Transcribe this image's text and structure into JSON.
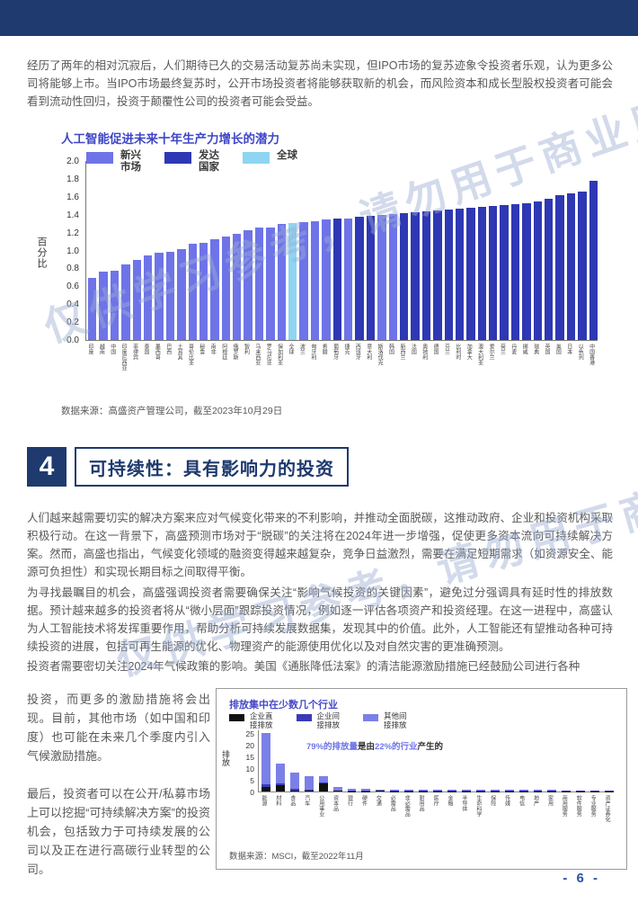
{
  "page": {
    "number": "- 6 -",
    "watermark": "仅供学习参考，请勿用于商业用途"
  },
  "intro_paragraph": "经历了两年的相对沉寂后，人们期待已久的交易活动复苏尚未实现，但IPO市场的复苏迹象令投资者乐观，认为更多公司将能够上市。当IPO市场最终复苏时，公开市场投资者将能够获取新的机会，而风险资本和成长型股权投资者可能会看到流动性回归，投资于颠覆性公司的投资者可能会受益。",
  "section": {
    "number": "4",
    "title": "可持续性：具有影响力的投资"
  },
  "paragraphs": [
    "人们越来越需要切实的解决方案来应对气候变化带来的不利影响，并推动全面脱碳，这推动政府、企业和投资机构采取积极行动。在这一背景下，高盛预测市场对于“脱碳”的关注将在2024年进一步增强，促使更多资本流向可持续解决方案。然而，高盛也指出，气候变化领域的融资变得越来越复杂，竞争日益激烈，需要在满足短期需求（如资源安全、能源可负担性）和实现长期目标之间取得平衡。",
    "为寻找最瞩目的机会，高盛强调投资者需要确保关注“影响气候投资的关键因素”，避免过分强调具有延时性的排放数据。预计越来越多的投资者将从“微小层面”跟踪投资情况，例如逐一评估各项资产和投资经理。在这一进程中，高盛认为人工智能技术将发挥重要作用，帮助分析可持续发展数据集，发现其中的价值。此外，人工智能还有望推动各种可持续投资的进展，包括可再生能源的优化、物理资产的能源使用优化以及对自然灾害的更准确预测。",
    "投资者需要密切关注2024年气候政策的影响。美国《通胀降低法案》的清洁能源激励措施已经鼓励公司进行各种"
  ],
  "left_column": [
    "投资，而更多的激励措施将会出现。目前，其他市场（如中国和印度）也可能在未来几个季度内引入气候激励措施。",
    "最后，投资者可以在公开/私募市场上可以挖掘“可持续解决方案”的投资机会，包括致力于可持续发展的公司以及正在进行高碳行业转型的公司。"
  ],
  "chart1": {
    "title": "人工智能促进未来十年生产力增长的潜力",
    "ylabel": "百分比",
    "legend": [
      {
        "label": "新兴\n市场",
        "key": "em",
        "color": "#6e74e8"
      },
      {
        "label": "发达\n国家",
        "key": "dm",
        "color": "#2e38b4"
      },
      {
        "label": "全球",
        "key": "global",
        "color": "#8ed5f2"
      }
    ],
    "source": "数据来源：高盛资产管理公司，截至2023年10月29日"
  },
  "chart2": {
    "title": "排放集中在少数几个行业",
    "ylabel": "排放",
    "legend": [
      {
        "label": "企业直\n接排放",
        "key": "direct",
        "color": "#111111"
      },
      {
        "label": "企业间\n接排放",
        "key": "indirect",
        "color": "#3a3ab8"
      },
      {
        "label": "其他间\n接排放",
        "key": "other",
        "color": "#7b80e8"
      }
    ],
    "annotation": [
      {
        "text": "79%的排放量",
        "color": "#6e74e8"
      },
      {
        "text": "是由",
        "color": "#333333"
      },
      {
        "text": "22%的行业",
        "color": "#6e74e8"
      },
      {
        "text": "产生的",
        "color": "#333333"
      }
    ],
    "source": "数据来源：MSCI，截至2022年11月"
  },
  "chart_data": [
    {
      "type": "bar",
      "title": "人工智能促进未来十年生产力增长的潜力",
      "xlabel": "",
      "ylabel": "百分比",
      "ylim": [
        0.0,
        2.0
      ],
      "ytick_step": 0.2,
      "grid": false,
      "legend_position": "top",
      "groups": {
        "em": "新兴市场",
        "dm": "发达国家",
        "global": "全球"
      },
      "points": [
        {
          "label": "印度",
          "value": 0.69,
          "group": "em"
        },
        {
          "label": "越南",
          "value": 0.76,
          "group": "em"
        },
        {
          "label": "中国",
          "value": 0.77,
          "group": "em"
        },
        {
          "label": "印度尼西亚",
          "value": 0.84,
          "group": "em"
        },
        {
          "label": "菲律宾",
          "value": 0.89,
          "group": "em"
        },
        {
          "label": "泰国",
          "value": 0.94,
          "group": "em"
        },
        {
          "label": "墨西哥",
          "value": 0.98,
          "group": "em"
        },
        {
          "label": "巴西",
          "value": 0.99,
          "group": "em"
        },
        {
          "label": "土耳其",
          "value": 1.02,
          "group": "em"
        },
        {
          "label": "哥伦比亚",
          "value": 1.08,
          "group": "em"
        },
        {
          "label": "秘鲁",
          "value": 1.09,
          "group": "em"
        },
        {
          "label": "南非",
          "value": 1.13,
          "group": "em"
        },
        {
          "label": "阿根廷",
          "value": 1.16,
          "group": "em"
        },
        {
          "label": "俄罗斯",
          "value": 1.19,
          "group": "em"
        },
        {
          "label": "智利",
          "value": 1.23,
          "group": "em"
        },
        {
          "label": "马来西亚",
          "value": 1.26,
          "group": "em"
        },
        {
          "label": "罗马尼亚",
          "value": 1.26,
          "group": "em"
        },
        {
          "label": "保加利亚",
          "value": 1.3,
          "group": "em"
        },
        {
          "label": "全球",
          "value": 1.31,
          "group": "global"
        },
        {
          "label": "波兰",
          "value": 1.32,
          "group": "em"
        },
        {
          "label": "匈牙利",
          "value": 1.33,
          "group": "em"
        },
        {
          "label": "希腊",
          "value": 1.35,
          "group": "em"
        },
        {
          "label": "葡萄牙",
          "value": 1.36,
          "group": "dm"
        },
        {
          "label": "捷克",
          "value": 1.36,
          "group": "em"
        },
        {
          "label": "西班牙",
          "value": 1.38,
          "group": "dm"
        },
        {
          "label": "意大利",
          "value": 1.39,
          "group": "dm"
        },
        {
          "label": "斯洛伐克",
          "value": 1.4,
          "group": "em"
        },
        {
          "label": "韩国",
          "value": 1.41,
          "group": "em"
        },
        {
          "label": "新西兰",
          "value": 1.42,
          "group": "dm"
        },
        {
          "label": "法国",
          "value": 1.43,
          "group": "dm"
        },
        {
          "label": "奥地利",
          "value": 1.44,
          "group": "dm"
        },
        {
          "label": "德国",
          "value": 1.45,
          "group": "dm"
        },
        {
          "label": "芬兰",
          "value": 1.46,
          "group": "dm"
        },
        {
          "label": "比利时",
          "value": 1.47,
          "group": "dm"
        },
        {
          "label": "加拿大",
          "value": 1.48,
          "group": "dm"
        },
        {
          "label": "澳大利亚",
          "value": 1.49,
          "group": "dm"
        },
        {
          "label": "爱尔兰",
          "value": 1.5,
          "group": "dm"
        },
        {
          "label": "荷兰",
          "value": 1.51,
          "group": "dm"
        },
        {
          "label": "丹麦",
          "value": 1.52,
          "group": "dm"
        },
        {
          "label": "挪威",
          "value": 1.53,
          "group": "dm"
        },
        {
          "label": "瑞典",
          "value": 1.55,
          "group": "dm"
        },
        {
          "label": "英国",
          "value": 1.58,
          "group": "dm"
        },
        {
          "label": "美国",
          "value": 1.62,
          "group": "dm"
        },
        {
          "label": "日本",
          "value": 1.64,
          "group": "dm"
        },
        {
          "label": "以色列",
          "value": 1.66,
          "group": "dm"
        },
        {
          "label": "中国香港",
          "value": 1.78,
          "group": "dm"
        }
      ],
      "source": "数据来源：高盛资产管理公司，截至2023年10月29日"
    },
    {
      "type": "bar",
      "subtype": "stacked",
      "title": "排放集中在少数几个行业",
      "xlabel": "",
      "ylabel": "排放",
      "ylim": [
        0,
        25
      ],
      "ytick_step": 5,
      "grid": false,
      "legend_position": "top",
      "annotation": "79%的排放量是由22%的行业产生的",
      "series_keys": [
        "direct",
        "indirect",
        "other"
      ],
      "points": [
        {
          "label": "能源",
          "direct": 2.0,
          "indirect": 1.0,
          "other": 22.0
        },
        {
          "label": "材料",
          "direct": 2.5,
          "indirect": 1.0,
          "other": 8.5
        },
        {
          "label": "食品",
          "direct": 0.5,
          "indirect": 0.5,
          "other": 7.0
        },
        {
          "label": "汽车",
          "direct": 0.3,
          "indirect": 0.5,
          "other": 5.7
        },
        {
          "label": "公用事业",
          "direct": 3.5,
          "indirect": 0.5,
          "other": 2.5
        },
        {
          "label": "资本品",
          "direct": 0.2,
          "indirect": 0.3,
          "other": 1.5
        },
        {
          "label": "银行",
          "direct": 0.1,
          "indirect": 0.1,
          "other": 0.8
        },
        {
          "label": "硬件",
          "direct": 0.1,
          "indirect": 0.1,
          "other": 0.7
        },
        {
          "label": "交通",
          "direct": 0.3,
          "indirect": 0.1,
          "other": 0.4
        },
        {
          "label": "必需品",
          "direct": 0.1,
          "indirect": 0.1,
          "other": 0.5
        },
        {
          "label": "非必需品",
          "direct": 0.1,
          "indirect": 0.1,
          "other": 0.5
        },
        {
          "label": "耐用品",
          "direct": 0.05,
          "indirect": 0.05,
          "other": 0.45
        },
        {
          "label": "医疗",
          "direct": 0.05,
          "indirect": 0.05,
          "other": 0.4
        },
        {
          "label": "金融",
          "direct": 0.05,
          "indirect": 0.05,
          "other": 0.35
        },
        {
          "label": "半导体",
          "direct": 0.05,
          "indirect": 0.05,
          "other": 0.35
        },
        {
          "label": "生命科学",
          "direct": 0.05,
          "indirect": 0.05,
          "other": 0.3
        },
        {
          "label": "保险",
          "direct": 0.05,
          "indirect": 0.05,
          "other": 0.25
        },
        {
          "label": "传媒",
          "direct": 0.05,
          "indirect": 0.05,
          "other": 0.25
        },
        {
          "label": "电信",
          "direct": 0.05,
          "indirect": 0.05,
          "other": 0.25
        },
        {
          "label": "地产",
          "direct": 0.05,
          "indirect": 0.05,
          "other": 0.2
        },
        {
          "label": "家用",
          "direct": 0.05,
          "indirect": 0.05,
          "other": 0.2
        },
        {
          "label": "商用服务",
          "direct": 0.05,
          "indirect": 0.05,
          "other": 0.15
        },
        {
          "label": "软件服务",
          "direct": 0.05,
          "indirect": 0.05,
          "other": 0.15
        },
        {
          "label": "专业服务",
          "direct": 0.05,
          "indirect": 0.05,
          "other": 0.1
        },
        {
          "label": "资产证券化",
          "direct": 0.02,
          "indirect": 0.03,
          "other": 0.1
        }
      ],
      "source": "数据来源：MSCI，截至2022年11月"
    }
  ]
}
